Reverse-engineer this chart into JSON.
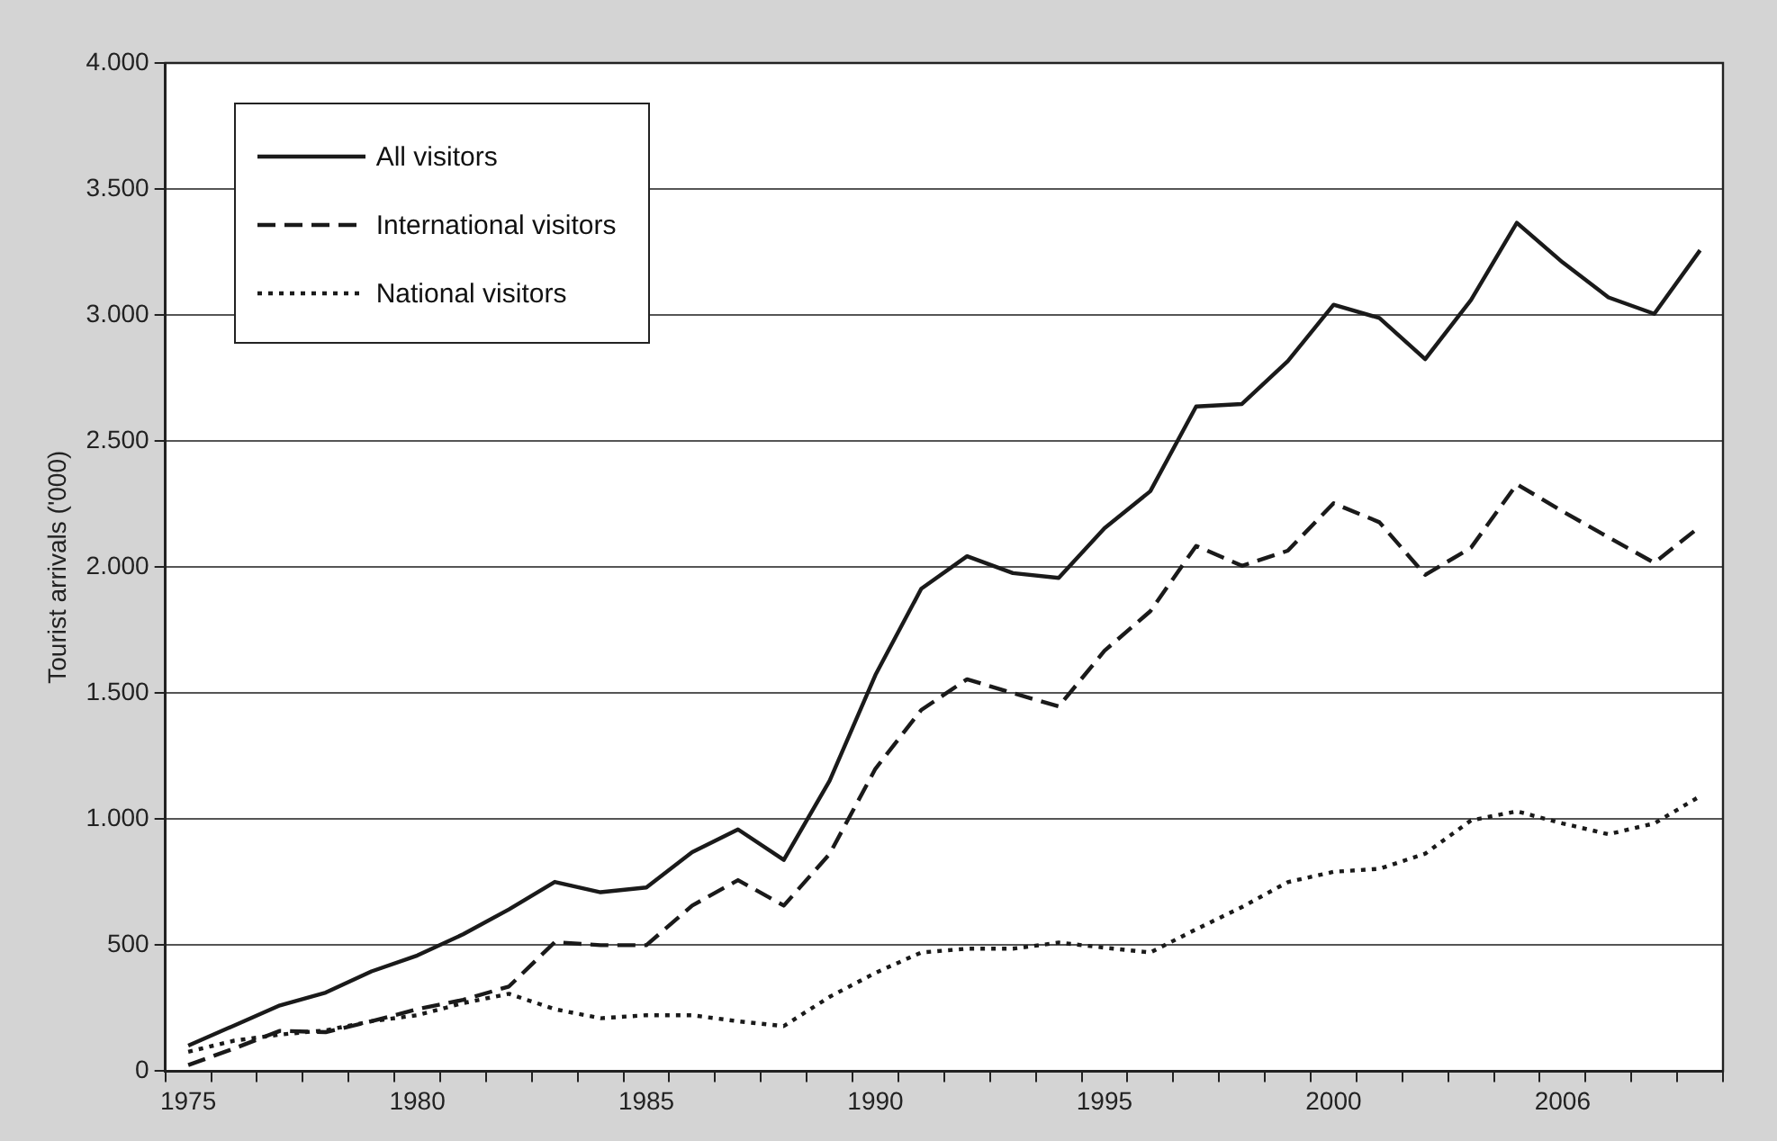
{
  "chart_data": {
    "type": "line",
    "ylabel": "Tourist arrivals ('000)",
    "categories": [
      "1975",
      null,
      null,
      null,
      null,
      "1980",
      null,
      null,
      null,
      null,
      "1985",
      null,
      null,
      null,
      null,
      "1990",
      null,
      null,
      null,
      null,
      "1995",
      null,
      null,
      null,
      null,
      "2000",
      null,
      null,
      null,
      null,
      "2006",
      null,
      null,
      null
    ],
    "series": [
      {
        "name": "All visitors",
        "color": "#1a1a1a",
        "line_style": "solid",
        "values": [
          101,
          181,
          261,
          312,
          396,
          459,
          543,
          642,
          751,
          710,
          729,
          869,
          959,
          838,
          1152,
          1572,
          1914,
          2043,
          1976,
          1957,
          2154,
          2301,
          2637,
          2647,
          2817,
          3041,
          2988,
          2825,
          3060,
          3366,
          3209,
          3070,
          3005,
          3257
        ]
      },
      {
        "name": "International visitors",
        "color": "#1a1a1a",
        "line_style": "dashed",
        "values": [
          24,
          90,
          160,
          155,
          198,
          246,
          283,
          336,
          512,
          500,
          500,
          657,
          758,
          657,
          862,
          1200,
          1433,
          1555,
          1500,
          1447,
          1668,
          1825,
          2084,
          2005,
          2065,
          2253,
          2178,
          1969,
          2077,
          2329,
          2221,
          2118,
          2017,
          2161
        ]
      },
      {
        "name": "National visitors",
        "color": "#1a1a1a",
        "line_style": "dotted",
        "values": [
          77,
          121,
          145,
          162,
          198,
          222,
          270,
          307,
          246,
          210,
          222,
          222,
          198,
          179,
          295,
          390,
          471,
          486,
          486,
          510,
          490,
          471,
          563,
          651,
          750,
          791,
          803,
          863,
          995,
          1031,
          983,
          940,
          983,
          1091
        ]
      }
    ],
    "ylim": [
      0,
      4000
    ],
    "yticks": [
      {
        "value": 0,
        "label": "0"
      },
      {
        "value": 500,
        "label": "500"
      },
      {
        "value": 1000,
        "label": "1.000"
      },
      {
        "value": 1500,
        "label": "1.500"
      },
      {
        "value": 2000,
        "label": "2.000"
      },
      {
        "value": 2500,
        "label": "2.500"
      },
      {
        "value": 3000,
        "label": "3.000"
      },
      {
        "value": 3500,
        "label": "3.500"
      },
      {
        "value": 4000,
        "label": "4.000"
      }
    ],
    "grid": "y",
    "legend": "top left",
    "marker": "none"
  }
}
